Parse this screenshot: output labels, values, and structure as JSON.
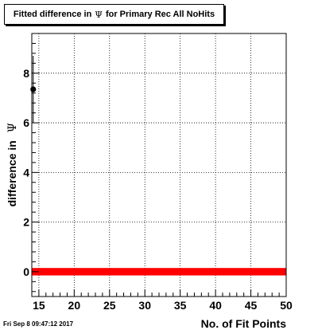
{
  "title": {
    "prefix": "Fitted difference in",
    "symbol": "Ψ",
    "suffix": "for Primary Rec All NoHits"
  },
  "footer": {
    "timestamp": "Fri Sep  8 09:47:12 2017"
  },
  "chart_data": {
    "type": "scatter",
    "title": "Fitted difference in Ψ for Primary Rec All NoHits",
    "xlabel": "No. of Fit Points",
    "ylabel_prefix": "difference in",
    "ylabel_symbol": "Ψ",
    "xlim": [
      14,
      50
    ],
    "ylim": [
      -1,
      9.6
    ],
    "x_ticks": [
      15,
      20,
      25,
      30,
      35,
      40,
      45,
      50
    ],
    "y_ticks": [
      0,
      2,
      4,
      6,
      8
    ],
    "grid": true,
    "points": [
      {
        "x": 14.2,
        "y": 7.35,
        "err_low": 6.0,
        "err_high": 8.7
      }
    ],
    "band": {
      "y": 0,
      "half_height": 0.15,
      "x_from": 14,
      "x_to": 50,
      "color": "#ff0000"
    },
    "colors": {
      "marker": "#000000",
      "band": "#ff0000",
      "axis": "#000000",
      "grid": "#000000"
    }
  }
}
